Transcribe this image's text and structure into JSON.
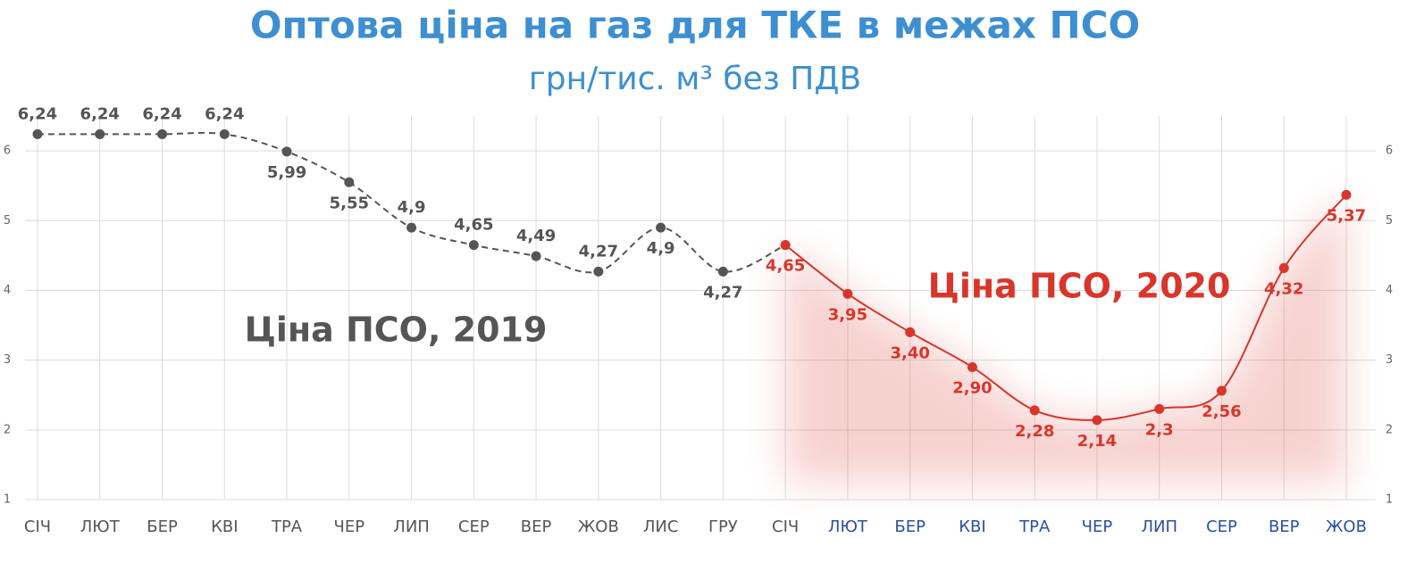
{
  "chart_data": {
    "type": "line",
    "title": "Оптова ціна на газ для ТКЕ в межах ПСО",
    "subtitle": "грн/тис. м³ без ПДВ",
    "categories": [
      "СІЧ",
      "ЛЮТ",
      "БЕР",
      "КВІ",
      "ТРА",
      "ЧЕР",
      "ЛИП",
      "СЕР",
      "ВЕР",
      "ЖОВ",
      "ЛИС",
      "ГРУ",
      "СІЧ",
      "ЛЮТ",
      "БЕР",
      "КВІ",
      "ТРА",
      "ЧЕР",
      "ЛИП",
      "СЕР",
      "ВЕР",
      "ЖОВ"
    ],
    "series": [
      {
        "name": "Ціна ПСО, 2019",
        "color": "#555555",
        "values": [
          6.24,
          6.24,
          6.24,
          6.24,
          5.99,
          5.55,
          4.9,
          4.65,
          4.49,
          4.27,
          4.9,
          4.27,
          4.65,
          null,
          null,
          null,
          null,
          null,
          null,
          null,
          null,
          null
        ],
        "value_labels": [
          "6,24",
          "6,24",
          "6,24",
          "6,24",
          "5,99",
          "5,55",
          "4,9",
          "4,65",
          "4,49",
          "4,27",
          "4,9",
          "4,27",
          null,
          null,
          null,
          null,
          null,
          null,
          null,
          null,
          null,
          null
        ]
      },
      {
        "name": "Ціна ПСО, 2020",
        "color": "#d9352b",
        "values": [
          null,
          null,
          null,
          null,
          null,
          null,
          null,
          null,
          null,
          null,
          null,
          null,
          4.65,
          3.95,
          3.4,
          2.9,
          2.28,
          2.14,
          2.3,
          2.56,
          4.32,
          5.37
        ],
        "value_labels": [
          null,
          null,
          null,
          null,
          null,
          null,
          null,
          null,
          null,
          null,
          null,
          null,
          "4,65",
          "3,95",
          "3,40",
          "2,90",
          "2,28",
          "2,14",
          "2,3",
          "2,56",
          "4,32",
          "5,37"
        ]
      }
    ],
    "ylim": [
      1,
      6.5
    ],
    "yticks": [
      1,
      2,
      3,
      4,
      5,
      6
    ],
    "grid": true,
    "category_color_late": "#2b4fa0"
  }
}
